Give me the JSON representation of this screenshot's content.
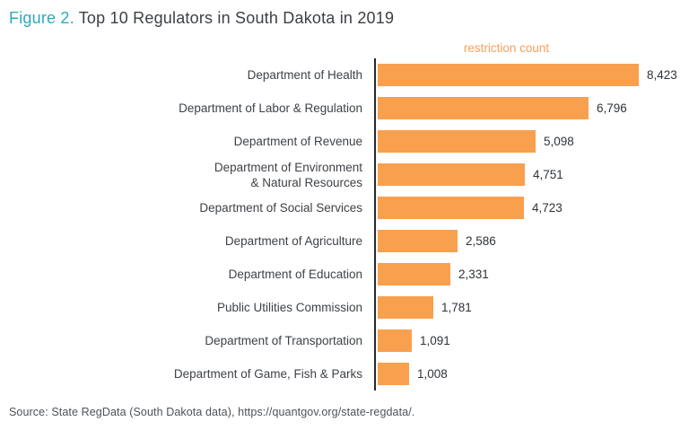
{
  "title": {
    "figure_label": "Figure 2.",
    "text": "Top 10 Regulators in South Dakota in 2019"
  },
  "legend": {
    "label": "restriction count"
  },
  "source": {
    "text": "Source: State RegData (South Dakota data), https://quantgov.org/state-regdata/."
  },
  "colors": {
    "bar": "#F9A04E",
    "figure_label": "#2CAABB",
    "title_text": "#3C4045",
    "axis_line": "#26282B",
    "category_text": "#3E4247",
    "value_text": "#2F3337",
    "legend_text": "#F9A05A",
    "source_text": "#4E5256"
  },
  "chart_data": {
    "type": "bar",
    "orientation": "horizontal",
    "title": "Figure 2. Top 10 Regulators in South Dakota in 2019",
    "series_label": "restriction count",
    "categories": [
      "Department of Health",
      "Department of Labor & Regulation",
      "Department of Revenue",
      "Department of Environment\n& Natural Resources",
      "Department of Social Services",
      "Department of Agriculture",
      "Department of Education",
      "Public Utilities Commission",
      "Department of Transportation",
      "Department of Game, Fish & Parks"
    ],
    "values": [
      8423,
      6796,
      5098,
      4751,
      4723,
      2586,
      2331,
      1781,
      1091,
      1008
    ],
    "value_labels": [
      "8,423",
      "6,796",
      "5,098",
      "4,751",
      "4,723",
      "2,586",
      "2,331",
      "1,781",
      "1,091",
      "1,008"
    ],
    "xlim": [
      0,
      8423
    ],
    "grid": false,
    "legend_position": "top-center",
    "value_labels_shown": true
  }
}
